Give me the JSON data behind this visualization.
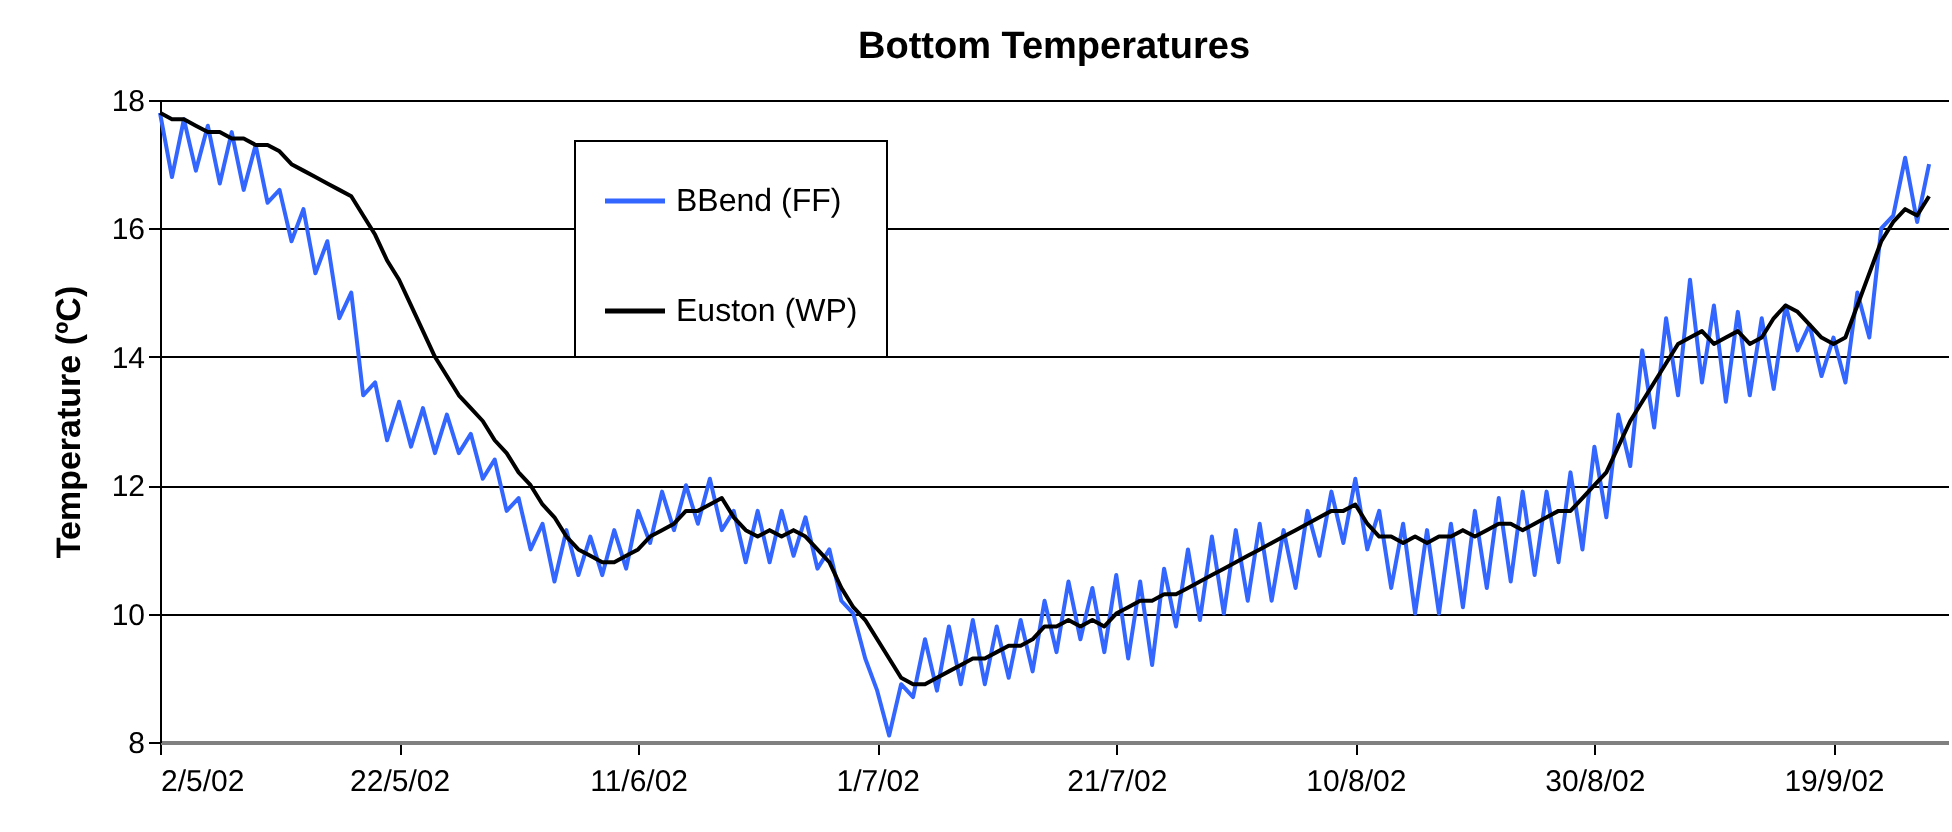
{
  "chart_data": {
    "type": "line",
    "title": "Bottom Temperatures",
    "ylabel": "Temperature (ºC)",
    "x": [
      "2002-05-02",
      "2002-05-03",
      "2002-05-04",
      "2002-05-05",
      "2002-05-06",
      "2002-05-07",
      "2002-05-08",
      "2002-05-09",
      "2002-05-10",
      "2002-05-11",
      "2002-05-12",
      "2002-05-13",
      "2002-05-14",
      "2002-05-15",
      "2002-05-16",
      "2002-05-17",
      "2002-05-18",
      "2002-05-19",
      "2002-05-20",
      "2002-05-21",
      "2002-05-22",
      "2002-05-23",
      "2002-05-24",
      "2002-05-25",
      "2002-05-26",
      "2002-05-27",
      "2002-05-28",
      "2002-05-29",
      "2002-05-30",
      "2002-05-31",
      "2002-06-01",
      "2002-06-02",
      "2002-06-03",
      "2002-06-04",
      "2002-06-05",
      "2002-06-06",
      "2002-06-07",
      "2002-06-08",
      "2002-06-09",
      "2002-06-10",
      "2002-06-11",
      "2002-06-12",
      "2002-06-13",
      "2002-06-14",
      "2002-06-15",
      "2002-06-16",
      "2002-06-17",
      "2002-06-18",
      "2002-06-19",
      "2002-06-20",
      "2002-06-21",
      "2002-06-22",
      "2002-06-23",
      "2002-06-24",
      "2002-06-25",
      "2002-06-26",
      "2002-06-27",
      "2002-06-28",
      "2002-06-29",
      "2002-06-30",
      "2002-07-01",
      "2002-07-02",
      "2002-07-03",
      "2002-07-04",
      "2002-07-05",
      "2002-07-06",
      "2002-07-07",
      "2002-07-08",
      "2002-07-09",
      "2002-07-10",
      "2002-07-11",
      "2002-07-12",
      "2002-07-13",
      "2002-07-14",
      "2002-07-15",
      "2002-07-16",
      "2002-07-17",
      "2002-07-18",
      "2002-07-19",
      "2002-07-20",
      "2002-07-21",
      "2002-07-22",
      "2002-07-23",
      "2002-07-24",
      "2002-07-25",
      "2002-07-26",
      "2002-07-27",
      "2002-07-28",
      "2002-07-29",
      "2002-07-30",
      "2002-07-31",
      "2002-08-01",
      "2002-08-02",
      "2002-08-03",
      "2002-08-04",
      "2002-08-05",
      "2002-08-06",
      "2002-08-07",
      "2002-08-08",
      "2002-08-09",
      "2002-08-10",
      "2002-08-11",
      "2002-08-12",
      "2002-08-13",
      "2002-08-14",
      "2002-08-15",
      "2002-08-16",
      "2002-08-17",
      "2002-08-18",
      "2002-08-19",
      "2002-08-20",
      "2002-08-21",
      "2002-08-22",
      "2002-08-23",
      "2002-08-24",
      "2002-08-25",
      "2002-08-26",
      "2002-08-27",
      "2002-08-28",
      "2002-08-29",
      "2002-08-30",
      "2002-08-31",
      "2002-09-01",
      "2002-09-02",
      "2002-09-03",
      "2002-09-04",
      "2002-09-05",
      "2002-09-06",
      "2002-09-07",
      "2002-09-08",
      "2002-09-09",
      "2002-09-10",
      "2002-09-11",
      "2002-09-12",
      "2002-09-13",
      "2002-09-14",
      "2002-09-15",
      "2002-09-16",
      "2002-09-17",
      "2002-09-18",
      "2002-09-19",
      "2002-09-20",
      "2002-09-21",
      "2002-09-22",
      "2002-09-23",
      "2002-09-24",
      "2002-09-25",
      "2002-09-26",
      "2002-09-27"
    ],
    "series": [
      {
        "name": "BBend (FF)",
        "color": "#3366ff",
        "values": [
          17.8,
          16.8,
          17.7,
          16.9,
          17.6,
          16.7,
          17.5,
          16.6,
          17.3,
          16.4,
          16.6,
          15.8,
          16.3,
          15.3,
          15.8,
          14.6,
          15.0,
          13.4,
          13.6,
          12.7,
          13.3,
          12.6,
          13.2,
          12.5,
          13.1,
          12.5,
          12.8,
          12.1,
          12.4,
          11.6,
          11.8,
          11.0,
          11.4,
          10.5,
          11.3,
          10.6,
          11.2,
          10.6,
          11.3,
          10.7,
          11.6,
          11.1,
          11.9,
          11.3,
          12.0,
          11.4,
          12.1,
          11.3,
          11.6,
          10.8,
          11.6,
          10.8,
          11.6,
          10.9,
          11.5,
          10.7,
          11.0,
          10.2,
          10.0,
          9.3,
          8.8,
          8.1,
          8.9,
          8.7,
          9.6,
          8.8,
          9.8,
          8.9,
          9.9,
          8.9,
          9.8,
          9.0,
          9.9,
          9.1,
          10.2,
          9.4,
          10.5,
          9.6,
          10.4,
          9.4,
          10.6,
          9.3,
          10.5,
          9.2,
          10.7,
          9.8,
          11.0,
          9.9,
          11.2,
          10.0,
          11.3,
          10.2,
          11.4,
          10.2,
          11.3,
          10.4,
          11.6,
          10.9,
          11.9,
          11.1,
          12.1,
          11.0,
          11.6,
          10.4,
          11.4,
          10.0,
          11.3,
          10.0,
          11.4,
          10.1,
          11.6,
          10.4,
          11.8,
          10.5,
          11.9,
          10.6,
          11.9,
          10.8,
          12.2,
          11.0,
          12.6,
          11.5,
          13.1,
          12.3,
          14.1,
          12.9,
          14.6,
          13.4,
          15.2,
          13.6,
          14.8,
          13.3,
          14.7,
          13.4,
          14.6,
          13.5,
          14.8,
          14.1,
          14.5,
          13.7,
          14.3,
          13.6,
          15.0,
          14.3,
          16.0,
          16.2,
          17.1,
          16.1,
          17.0
        ]
      },
      {
        "name": "Euston (WP)",
        "color": "#000000",
        "values": [
          17.8,
          17.7,
          17.7,
          17.6,
          17.5,
          17.5,
          17.4,
          17.4,
          17.3,
          17.3,
          17.2,
          17.0,
          16.9,
          16.8,
          16.7,
          16.6,
          16.5,
          16.2,
          15.9,
          15.5,
          15.2,
          14.8,
          14.4,
          14.0,
          13.7,
          13.4,
          13.2,
          13.0,
          12.7,
          12.5,
          12.2,
          12.0,
          11.7,
          11.5,
          11.2,
          11.0,
          10.9,
          10.8,
          10.8,
          10.9,
          11.0,
          11.2,
          11.3,
          11.4,
          11.6,
          11.6,
          11.7,
          11.8,
          11.5,
          11.3,
          11.2,
          11.3,
          11.2,
          11.3,
          11.2,
          11.0,
          10.8,
          10.4,
          10.1,
          9.9,
          9.6,
          9.3,
          9.0,
          8.9,
          8.9,
          9.0,
          9.1,
          9.2,
          9.3,
          9.3,
          9.4,
          9.5,
          9.5,
          9.6,
          9.8,
          9.8,
          9.9,
          9.8,
          9.9,
          9.8,
          10.0,
          10.1,
          10.2,
          10.2,
          10.3,
          10.3,
          10.4,
          10.5,
          10.6,
          10.7,
          10.8,
          10.9,
          11.0,
          11.1,
          11.2,
          11.3,
          11.4,
          11.5,
          11.6,
          11.6,
          11.7,
          11.4,
          11.2,
          11.2,
          11.1,
          11.2,
          11.1,
          11.2,
          11.2,
          11.3,
          11.2,
          11.3,
          11.4,
          11.4,
          11.3,
          11.4,
          11.5,
          11.6,
          11.6,
          11.8,
          12.0,
          12.2,
          12.6,
          13.0,
          13.3,
          13.6,
          13.9,
          14.2,
          14.3,
          14.4,
          14.2,
          14.3,
          14.4,
          14.2,
          14.3,
          14.6,
          14.8,
          14.7,
          14.5,
          14.3,
          14.2,
          14.3,
          14.8,
          15.3,
          15.8,
          16.1,
          16.3,
          16.2,
          16.5
        ]
      }
    ],
    "xlim": [
      "2002-05-02",
      "2002-09-28T14:00"
    ],
    "xticks": [
      {
        "value": "2002-05-02",
        "label": "2/5/02"
      },
      {
        "value": "2002-05-22",
        "label": "22/5/02"
      },
      {
        "value": "2002-06-11",
        "label": "11/6/02"
      },
      {
        "value": "2002-07-01",
        "label": "1/7/02"
      },
      {
        "value": "2002-07-21",
        "label": "21/7/02"
      },
      {
        "value": "2002-08-10",
        "label": "10/8/02"
      },
      {
        "value": "2002-08-30",
        "label": "30/8/02"
      },
      {
        "value": "2002-09-19",
        "label": "19/9/02"
      }
    ],
    "ylim": [
      8,
      18
    ],
    "yticks": [
      8,
      10,
      12,
      14,
      16,
      18
    ],
    "grid": "y",
    "legend": "top",
    "line_style": "solid",
    "marker": "none"
  }
}
